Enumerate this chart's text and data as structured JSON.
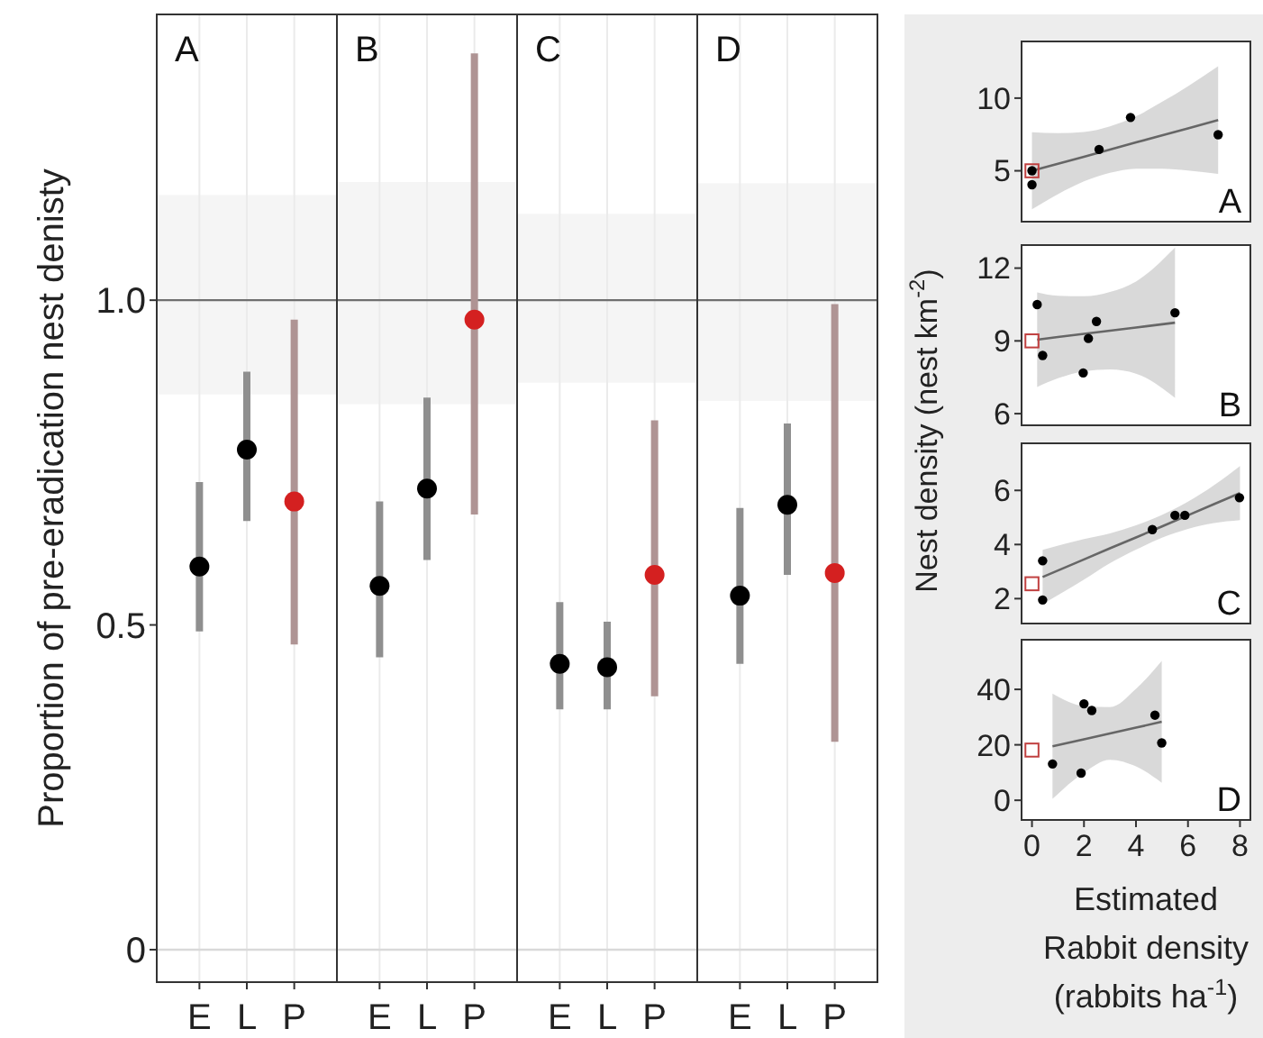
{
  "chart_data": [
    {
      "type": "scatter",
      "annotations": [
        "A"
      ],
      "ylabel": "Proportion of pre-eradication nest denisty",
      "categories": [
        "E",
        "L",
        "P"
      ],
      "series": [
        {
          "color": "#000000",
          "values": [
            0.59,
            0.77,
            null
          ],
          "errors": [
            [
              0.49,
              0.72
            ],
            [
              0.66,
              0.89
            ],
            null
          ]
        },
        {
          "color": "#d42020",
          "values": [
            null,
            null,
            0.69
          ],
          "errors": [
            null,
            null,
            [
              0.47,
              0.97
            ]
          ]
        }
      ],
      "ylim": [
        -0.05,
        1.44
      ],
      "yticks": [
        0,
        0.5,
        {
          "value": 1,
          "label": "1.0"
        }
      ],
      "ref_lines": [
        {
          "axis": "y",
          "value": 0,
          "color": "#d9d9d9"
        },
        {
          "axis": "y",
          "value": 1,
          "color": "#707070"
        }
      ],
      "bands": [
        {
          "axis": "y",
          "from": 0.855,
          "to": 1.162,
          "color": "#f5f5f5"
        }
      ],
      "grid": "x",
      "marker": "circle"
    },
    {
      "type": "scatter",
      "annotations": [
        "B"
      ],
      "categories": [
        "E",
        "L",
        "P"
      ],
      "series": [
        {
          "color": "#000000",
          "values": [
            0.56,
            0.71,
            null
          ],
          "errors": [
            [
              0.45,
              0.69
            ],
            [
              0.6,
              0.85
            ],
            null
          ]
        },
        {
          "color": "#d42020",
          "values": [
            null,
            null,
            0.97
          ],
          "errors": [
            null,
            null,
            [
              0.67,
              1.38
            ]
          ]
        }
      ],
      "ylim": [
        -0.05,
        1.44
      ],
      "tick_labels": "x",
      "ref_lines": [
        {
          "axis": "y",
          "value": 0,
          "color": "#d9d9d9"
        },
        {
          "axis": "y",
          "value": 1,
          "color": "#707070"
        }
      ],
      "bands": [
        {
          "axis": "y",
          "from": 0.84,
          "to": 1.182,
          "color": "#f5f5f5"
        }
      ],
      "grid": "x",
      "marker": "circle"
    },
    {
      "type": "scatter",
      "annotations": [
        "C"
      ],
      "categories": [
        "E",
        "L",
        "P"
      ],
      "series": [
        {
          "color": "#000000",
          "values": [
            0.44,
            0.435,
            null
          ],
          "errors": [
            [
              0.37,
              0.535
            ],
            [
              0.37,
              0.505
            ],
            null
          ]
        },
        {
          "color": "#d42020",
          "values": [
            null,
            null,
            0.577
          ],
          "errors": [
            null,
            null,
            [
              0.39,
              0.815
            ]
          ]
        }
      ],
      "ylim": [
        -0.05,
        1.44
      ],
      "tick_labels": "x",
      "ref_lines": [
        {
          "axis": "y",
          "value": 0,
          "color": "#d9d9d9"
        },
        {
          "axis": "y",
          "value": 1,
          "color": "#707070"
        }
      ],
      "bands": [
        {
          "axis": "y",
          "from": 0.873,
          "to": 1.133,
          "color": "#f5f5f5"
        }
      ],
      "grid": "x",
      "marker": "circle"
    },
    {
      "type": "scatter",
      "annotations": [
        "D"
      ],
      "categories": [
        "E",
        "L",
        "P"
      ],
      "series": [
        {
          "color": "#000000",
          "values": [
            0.545,
            0.685,
            null
          ],
          "errors": [
            [
              0.44,
              0.68
            ],
            [
              0.577,
              0.81
            ],
            null
          ]
        },
        {
          "color": "#d42020",
          "values": [
            null,
            null,
            0.58
          ],
          "errors": [
            null,
            null,
            [
              0.32,
              0.994
            ]
          ]
        }
      ],
      "ylim": [
        -0.05,
        1.44
      ],
      "tick_labels": "x",
      "ref_lines": [
        {
          "axis": "y",
          "value": 0,
          "color": "#d9d9d9"
        },
        {
          "axis": "y",
          "value": 1,
          "color": "#707070"
        }
      ],
      "bands": [
        {
          "axis": "y",
          "from": 0.845,
          "to": 1.18,
          "color": "#f5f5f5"
        }
      ],
      "grid": "x",
      "marker": "circle"
    },
    {
      "type": "scatter",
      "annotations": [
        "A"
      ],
      "series": [
        {
          "type": "line",
          "color": "#666666",
          "x": [
            0,
            1,
            2,
            3,
            4,
            5,
            6,
            7.16
          ],
          "values": [
            5,
            5.49,
            5.97,
            6.46,
            6.95,
            7.44,
            7.92,
            8.49
          ],
          "lower": [
            2.35,
            3.39,
            4.27,
            4.86,
            5.15,
            5.14,
            5.02,
            4.79
          ],
          "upper": [
            7.65,
            7.59,
            7.67,
            8.06,
            8.75,
            9.74,
            10.82,
            12.19
          ]
        },
        {
          "color": "#000000",
          "marker": "circle",
          "x": [
            0,
            0,
            2.58,
            3.79,
            7.16
          ],
          "values": [
            5.0,
            4.04,
            6.47,
            8.67,
            7.48
          ]
        },
        {
          "color": "#c04040",
          "marker": "square",
          "x": [
            0
          ],
          "values": [
            5.0
          ]
        }
      ],
      "xlim": [
        -0.4,
        8.4
      ],
      "ylim": [
        1.5,
        13.9
      ],
      "yticks": [
        5,
        10
      ],
      "tick_labels": "y"
    },
    {
      "type": "scatter",
      "annotations": [
        "B"
      ],
      "ylabel": "Nest density (nest km$^{-2}$)",
      "series": [
        {
          "type": "line",
          "color": "#666666",
          "x": [
            0.2,
            1,
            2,
            3,
            4,
            5.5
          ],
          "values": [
            9.05,
            9.16,
            9.29,
            9.42,
            9.55,
            9.75
          ],
          "lower": [
            7.1,
            7.46,
            7.74,
            7.82,
            7.65,
            6.65
          ],
          "upper": [
            11.0,
            10.86,
            10.84,
            11.02,
            11.45,
            12.85
          ]
        },
        {
          "color": "#000000",
          "marker": "circle",
          "x": [
            0.2,
            0.41,
            1.97,
            2.17,
            2.48,
            5.5
          ],
          "values": [
            10.5,
            8.4,
            7.68,
            9.1,
            9.8,
            10.16
          ]
        },
        {
          "color": "#c04040",
          "marker": "square",
          "x": [
            0
          ],
          "values": [
            9.0
          ]
        }
      ],
      "xlim": [
        -0.4,
        8.4
      ],
      "ylim": [
        5.52,
        12.95
      ],
      "yticks": [
        6,
        9,
        12
      ],
      "tick_labels": "y"
    },
    {
      "type": "scatter",
      "annotations": [
        "C"
      ],
      "series": [
        {
          "type": "line",
          "color": "#666666",
          "x": [
            0.41,
            2,
            3,
            4,
            5,
            6,
            7,
            8
          ],
          "values": [
            2.8,
            3.45,
            3.86,
            4.26,
            4.67,
            5.08,
            5.49,
            5.9
          ],
          "lower": [
            1.8,
            2.7,
            3.31,
            3.81,
            4.25,
            4.58,
            4.79,
            4.9
          ],
          "upper": [
            3.8,
            4.2,
            4.41,
            4.71,
            5.09,
            5.58,
            6.19,
            6.9
          ]
        },
        {
          "color": "#000000",
          "marker": "circle",
          "x": [
            0.41,
            0.41,
            4.63,
            5.5,
            5.88,
            7.98
          ],
          "values": [
            3.4,
            1.95,
            4.55,
            5.08,
            5.08,
            5.73
          ]
        },
        {
          "color": "#c04040",
          "marker": "square",
          "x": [
            0
          ],
          "values": [
            2.55
          ]
        }
      ],
      "xlim": [
        -0.4,
        8.4
      ],
      "ylim": [
        1.08,
        7.74
      ],
      "yticks": [
        2,
        4,
        6
      ],
      "tick_labels": "y"
    },
    {
      "type": "scatter",
      "annotations": [
        "D"
      ],
      "xlabel": "Estimated\nRabbit density\n(rabbits ha$^{-1}$)",
      "series": [
        {
          "type": "line",
          "color": "#666666",
          "x": [
            0.79,
            2,
            3,
            4,
            4.99
          ],
          "values": [
            19.5,
            22.0,
            24.1,
            26.2,
            28.3
          ],
          "lower": [
            0.5,
            10,
            14.6,
            12.2,
            6.3
          ],
          "upper": [
            38.5,
            34,
            33.6,
            40.2,
            50.3
          ]
        },
        {
          "color": "#000000",
          "marker": "circle",
          "x": [
            0.79,
            1.89,
            2.0,
            2.3,
            4.73,
            4.99
          ],
          "values": [
            13.1,
            9.8,
            34.8,
            32.4,
            30.7,
            20.7
          ]
        },
        {
          "color": "#c04040",
          "marker": "square",
          "x": [
            0
          ],
          "values": [
            18.1
          ]
        }
      ],
      "xlim": [
        -0.4,
        8.4
      ],
      "xticks": [
        0,
        2,
        4,
        6,
        8
      ],
      "ylim": [
        -7.1,
        57.9
      ],
      "yticks": [
        0,
        20,
        40
      ]
    }
  ]
}
